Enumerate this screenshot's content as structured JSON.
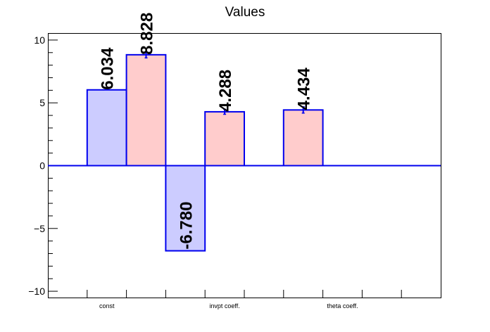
{
  "chart_data": {
    "type": "bar",
    "title": "Values",
    "categories": [
      "const",
      "invpt coeff.",
      "theta coeff."
    ],
    "ylim": [
      -10.5,
      10.5
    ],
    "yticks": [
      -10,
      -5,
      0,
      5,
      10
    ],
    "ytick_labels": [
      "−10",
      "−5",
      "0",
      "5",
      "10"
    ],
    "grid": false,
    "legend": "none",
    "series": [
      {
        "values": [
          6.034,
          null,
          -6.78
        ],
        "labels": [
          "6.034",
          "",
          "-6.780"
        ],
        "fill": "#ccccff",
        "stroke": "#0000ee"
      },
      {
        "values": [
          8.828,
          4.288,
          4.434
        ],
        "labels": [
          "8.828",
          "4.288",
          "4.434"
        ],
        "errors": [
          0.25,
          0.2,
          0.25
        ],
        "fill": "#ffcccc",
        "stroke": "#0000ee"
      }
    ],
    "bars": [
      {
        "series": 0,
        "value": 6.034,
        "label": "6.034",
        "slot": 0
      },
      {
        "series": 1,
        "value": 8.828,
        "label": "8.828",
        "slot": 1,
        "error": 0.25
      },
      {
        "series": 0,
        "value": -6.78,
        "label": "-6.780",
        "slot": 2
      },
      {
        "series": 1,
        "value": 4.288,
        "label": "4.288",
        "slot": 3,
        "error": 0.2
      },
      {
        "series": 1,
        "value": 4.434,
        "label": "4.434",
        "slot": 5,
        "error": 0.25
      }
    ]
  }
}
